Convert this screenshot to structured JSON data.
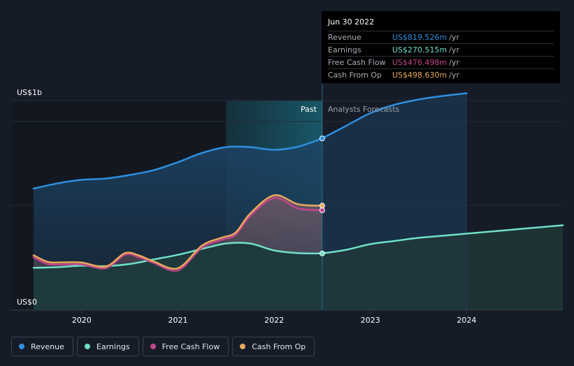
{
  "chart_data": {
    "type": "line",
    "y_unit_label": "US$1b",
    "y_zero_label": "US$0",
    "ylim": [
      0,
      1000
    ],
    "xlim": [
      2019.5,
      2025.0
    ],
    "x_ticks": [
      {
        "label": "2020",
        "x": 2020.0
      },
      {
        "label": "2021",
        "x": 2021.0
      },
      {
        "label": "2022",
        "x": 2022.0
      },
      {
        "label": "2023",
        "x": 2023.0
      },
      {
        "label": "2024",
        "x": 2024.0
      }
    ],
    "past_label": "Past",
    "forecast_label": "Analysts Forecasts",
    "divider_x": 2022.5,
    "highlight_from_x": 2021.5,
    "series": [
      {
        "name": "Revenue",
        "color": "#2e8fe0",
        "past": [
          [
            2019.5,
            580
          ],
          [
            2019.75,
            605
          ],
          [
            2020.0,
            622
          ],
          [
            2020.25,
            628
          ],
          [
            2020.5,
            645
          ],
          [
            2020.75,
            668
          ],
          [
            2021.0,
            706
          ],
          [
            2021.25,
            750
          ],
          [
            2021.5,
            778
          ],
          [
            2021.75,
            778
          ],
          [
            2022.0,
            765
          ],
          [
            2022.25,
            780
          ],
          [
            2022.5,
            819.5
          ]
        ],
        "forecast": [
          [
            2022.5,
            819.5
          ],
          [
            2022.75,
            880
          ],
          [
            2023.0,
            940
          ],
          [
            2023.25,
            980
          ],
          [
            2023.5,
            1005
          ],
          [
            2023.75,
            1022
          ],
          [
            2024.0,
            1035
          ]
        ]
      },
      {
        "name": "Earnings",
        "color": "#6fe0c8",
        "past": [
          [
            2019.5,
            202
          ],
          [
            2019.75,
            205
          ],
          [
            2020.0,
            212
          ],
          [
            2020.25,
            210
          ],
          [
            2020.5,
            220
          ],
          [
            2020.75,
            242
          ],
          [
            2021.0,
            264
          ],
          [
            2021.25,
            292
          ],
          [
            2021.5,
            318
          ],
          [
            2021.75,
            318
          ],
          [
            2022.0,
            285
          ],
          [
            2022.25,
            272
          ],
          [
            2022.5,
            270.5
          ]
        ],
        "forecast": [
          [
            2022.5,
            270.5
          ],
          [
            2022.75,
            288
          ],
          [
            2023.0,
            315
          ],
          [
            2023.25,
            330
          ],
          [
            2023.5,
            345
          ],
          [
            2023.75,
            355
          ],
          [
            2024.0,
            365
          ],
          [
            2024.5,
            385
          ],
          [
            2025.0,
            405
          ]
        ]
      },
      {
        "name": "Free Cash Flow",
        "color": "#c2468b",
        "past": [
          [
            2019.5,
            252
          ],
          [
            2019.65,
            220
          ],
          [
            2019.8,
            218
          ],
          [
            2020.0,
            218
          ],
          [
            2020.25,
            200
          ],
          [
            2020.45,
            265
          ],
          [
            2020.6,
            252
          ],
          [
            2020.75,
            225
          ],
          [
            2021.0,
            190
          ],
          [
            2021.25,
            298
          ],
          [
            2021.45,
            335
          ],
          [
            2021.6,
            360
          ],
          [
            2021.75,
            448
          ],
          [
            2022.0,
            535
          ],
          [
            2022.25,
            485
          ],
          [
            2022.5,
            476.5
          ]
        ],
        "forecast": []
      },
      {
        "name": "Cash From Op",
        "color": "#e8a95c",
        "past": [
          [
            2019.5,
            262
          ],
          [
            2019.65,
            230
          ],
          [
            2019.8,
            228
          ],
          [
            2020.0,
            227
          ],
          [
            2020.25,
            208
          ],
          [
            2020.45,
            272
          ],
          [
            2020.6,
            260
          ],
          [
            2020.75,
            232
          ],
          [
            2021.0,
            200
          ],
          [
            2021.25,
            308
          ],
          [
            2021.45,
            345
          ],
          [
            2021.6,
            370
          ],
          [
            2021.75,
            460
          ],
          [
            2022.0,
            548
          ],
          [
            2022.25,
            505
          ],
          [
            2022.5,
            498.6
          ]
        ],
        "forecast": []
      }
    ],
    "tooltip": {
      "date": "Jun 30 2022",
      "rows": [
        {
          "label": "Revenue",
          "value": "US$819.526m",
          "unit": "/yr",
          "color": "#2e8fe0"
        },
        {
          "label": "Earnings",
          "value": "US$270.515m",
          "unit": "/yr",
          "color": "#6fe0c8"
        },
        {
          "label": "Free Cash Flow",
          "value": "US$476.498m",
          "unit": "/yr",
          "color": "#c2468b"
        },
        {
          "label": "Cash From Op",
          "value": "US$498.630m",
          "unit": "/yr",
          "color": "#e8a95c"
        }
      ]
    }
  },
  "legend": [
    {
      "label": "Revenue",
      "color": "#2e8fe0"
    },
    {
      "label": "Earnings",
      "color": "#6fe0c8"
    },
    {
      "label": "Free Cash Flow",
      "color": "#c2468b"
    },
    {
      "label": "Cash From Op",
      "color": "#e8a95c"
    }
  ]
}
